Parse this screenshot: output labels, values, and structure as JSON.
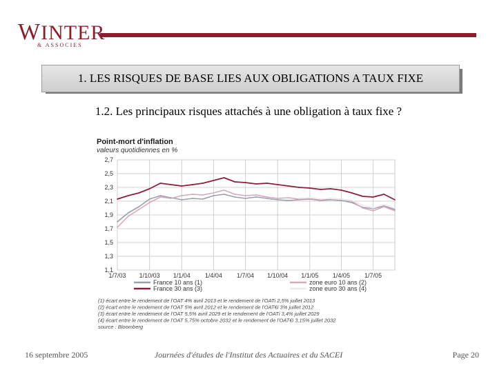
{
  "logo": {
    "main_initial": "W",
    "main_rest": "INTER",
    "sub": "& ASSOCIES"
  },
  "header": {
    "title": "1. LES RISQUES DE BASE LIES AUX OBLIGATIONS A TAUX FIXE",
    "subtitle": "1.2. Les principaux risques attachés à une obligation à taux fixe ?"
  },
  "footer": {
    "date": "16 septembre 2005",
    "event": "Journées d'études de l'Institut des Actuaires et du SACEI",
    "page": "Page 20"
  },
  "colors": {
    "brand": "#8b1e2c",
    "series_france10": "#9aa0a8",
    "series_france30": "#8b1e3a",
    "series_zone10": "#d6a8bc",
    "series_zone30": "#f0e6ec"
  },
  "chart_data": {
    "type": "line",
    "title": "Point-mort d'inflation",
    "subtitle": "valeurs quotidiennes en %",
    "ylim": [
      1.1,
      2.7
    ],
    "yticks": [
      "2,7",
      "2,5",
      "2,3",
      "2,1",
      "1,9",
      "1,7",
      "1,5",
      "1,3",
      "1,1"
    ],
    "ytick_values": [
      2.7,
      2.5,
      2.3,
      2.1,
      1.9,
      1.7,
      1.5,
      1.3,
      1.1
    ],
    "xticks": [
      "1/7/03",
      "1/10/03",
      "1/1/04",
      "1/4/04",
      "1/7/04",
      "1/10/04",
      "1/1/05",
      "1/4/05",
      "1/7/05"
    ],
    "x_range": [
      "1/7/03",
      "1/9/05"
    ],
    "grid": true,
    "series": [
      {
        "name": "France 10 ans (1)",
        "x": [
          "1/7/03",
          "1/8/03",
          "1/9/03",
          "1/10/03",
          "1/11/03",
          "1/12/03",
          "1/1/04",
          "1/2/04",
          "1/3/04",
          "1/4/04",
          "1/5/04",
          "1/6/04",
          "1/7/04",
          "1/8/04",
          "1/9/04",
          "1/10/04",
          "1/11/04",
          "1/12/04",
          "1/1/05",
          "1/2/05",
          "1/3/05",
          "1/4/05",
          "1/5/05",
          "1/6/05",
          "1/7/05",
          "1/8/05",
          "1/9/05"
        ],
        "values": [
          1.8,
          1.93,
          2.02,
          2.13,
          2.18,
          2.15,
          2.12,
          2.14,
          2.13,
          2.18,
          2.2,
          2.16,
          2.14,
          2.16,
          2.14,
          2.12,
          2.11,
          2.12,
          2.13,
          2.11,
          2.12,
          2.11,
          2.08,
          2.01,
          1.99,
          2.03,
          1.98
        ]
      },
      {
        "name": "France 30 ans (3)",
        "x": [
          "1/7/03",
          "1/8/03",
          "1/9/03",
          "1/10/03",
          "1/11/03",
          "1/12/03",
          "1/1/04",
          "1/2/04",
          "1/3/04",
          "1/4/04",
          "1/5/04",
          "1/6/04",
          "1/7/04",
          "1/8/04",
          "1/9/04",
          "1/10/04",
          "1/11/04",
          "1/12/04",
          "1/1/05",
          "1/2/05",
          "1/3/05",
          "1/4/05",
          "1/5/05",
          "1/6/05",
          "1/7/05",
          "1/8/05",
          "1/9/05"
        ],
        "values": [
          2.13,
          2.18,
          2.22,
          2.28,
          2.36,
          2.34,
          2.32,
          2.34,
          2.36,
          2.4,
          2.44,
          2.38,
          2.37,
          2.35,
          2.36,
          2.34,
          2.32,
          2.3,
          2.29,
          2.27,
          2.28,
          2.26,
          2.22,
          2.17,
          2.16,
          2.2,
          2.12
        ]
      },
      {
        "name": "zone euro 10 ans (2)",
        "x": [
          "1/7/03",
          "1/8/03",
          "1/9/03",
          "1/10/03",
          "1/11/03",
          "1/12/03",
          "1/1/04",
          "1/2/04",
          "1/3/04",
          "1/4/04",
          "1/5/04",
          "1/6/04",
          "1/7/04",
          "1/8/04",
          "1/9/04",
          "1/10/04",
          "1/11/04",
          "1/12/04",
          "1/1/05",
          "1/2/05",
          "1/3/05",
          "1/4/05",
          "1/5/05",
          "1/6/05",
          "1/7/05",
          "1/8/05",
          "1/9/05"
        ],
        "values": [
          1.72,
          1.88,
          1.98,
          2.08,
          2.16,
          2.14,
          2.18,
          2.2,
          2.19,
          2.22,
          2.26,
          2.2,
          2.18,
          2.19,
          2.16,
          2.14,
          2.15,
          2.13,
          2.14,
          2.12,
          2.14,
          2.13,
          2.1,
          2.0,
          1.96,
          2.02,
          1.96
        ]
      },
      {
        "name": "zone euro 30 ans (4)",
        "x": [
          "1/12/04",
          "1/1/05",
          "1/2/05",
          "1/3/05",
          "1/4/05",
          "1/5/05",
          "1/6/05",
          "1/7/05",
          "1/8/05",
          "1/9/05"
        ],
        "values": [
          2.14,
          2.15,
          2.13,
          2.14,
          2.13,
          2.11,
          2.04,
          2.0,
          2.05,
          2.0
        ]
      }
    ],
    "notes": [
      "(1) écart entre le rendement de l'OAT 4% avril 2013 et le rendement de l'OATi 2,5% juillet 2013",
      "(2) écart entre le rendement de l'OAT 5% avril 2012 et le rendement de l'OAT€i 3% juillet 2012",
      "(3) écart entre le rendement de l'OAT 5,5% avril 2029 et le rendement de l'OATi 3,4% juillet 2029",
      "(4) écart entre le rendement de l'OAT 5,75% octobre 2032 et le rendement de l'OAT€i 3,15% juillet 2032"
    ],
    "source": "source : Bloomberg"
  }
}
